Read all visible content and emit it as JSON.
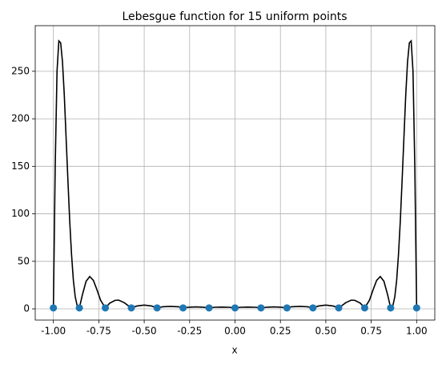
{
  "chart_data": {
    "type": "line",
    "title": "Lebesgue function for 15 uniform points",
    "x_label": "x",
    "xlim": [
      -1.1,
      1.1
    ],
    "ylim": [
      -11.8,
      298
    ],
    "grid": true,
    "xticks": [
      {
        "value": -1,
        "label": "-1.00"
      },
      {
        "value": -0.75,
        "label": "-0.75"
      },
      {
        "value": -0.5,
        "label": "-0.50"
      },
      {
        "value": -0.25,
        "label": "-0.25"
      },
      {
        "value": 0,
        "label": "0.00"
      },
      {
        "value": 0.25,
        "label": "0.25"
      },
      {
        "value": 0.5,
        "label": "0.50"
      },
      {
        "value": 0.75,
        "label": "0.75"
      },
      {
        "value": 1,
        "label": "1.00"
      }
    ],
    "yticks": [
      0,
      50,
      100,
      150,
      200,
      250
    ],
    "series": [
      {
        "type": "line",
        "color": "#000000",
        "x": [
          -1,
          -0.99,
          -0.98,
          -0.97,
          -0.96,
          -0.95,
          -0.94,
          -0.93,
          -0.92,
          -0.91,
          -0.9,
          -0.89,
          -0.88,
          -0.87,
          -0.857,
          -0.84,
          -0.82,
          -0.8,
          -0.78,
          -0.76,
          -0.74,
          -0.714,
          -0.69,
          -0.66,
          -0.64,
          -0.61,
          -0.571,
          -0.54,
          -0.5,
          -0.46,
          -0.429,
          -0.4,
          -0.357,
          -0.31,
          -0.286,
          -0.25,
          -0.214,
          -0.18,
          -0.143,
          -0.11,
          -0.071,
          -0.035,
          0,
          0.035,
          0.071,
          0.11,
          0.143,
          0.18,
          0.214,
          0.25,
          0.286,
          0.31,
          0.357,
          0.4,
          0.429,
          0.46,
          0.5,
          0.54,
          0.571,
          0.61,
          0.64,
          0.66,
          0.69,
          0.714,
          0.74,
          0.76,
          0.78,
          0.8,
          0.82,
          0.84,
          0.857,
          0.87,
          0.88,
          0.89,
          0.9,
          0.91,
          0.92,
          0.93,
          0.94,
          0.95,
          0.96,
          0.97,
          0.98,
          0.99,
          1
        ],
        "values": [
          1,
          150,
          250,
          282,
          280,
          260,
          225,
          180,
          135,
          92,
          57,
          30,
          13,
          4,
          1,
          15,
          29,
          34,
          30,
          20,
          9,
          1,
          6,
          9,
          9.2,
          6.5,
          1,
          3,
          4,
          3,
          1,
          2.2,
          2.6,
          2.2,
          1,
          1.8,
          2.1,
          1.8,
          1,
          1.7,
          1.9,
          1.7,
          1,
          1.7,
          1.9,
          1.7,
          1,
          1.8,
          2.1,
          1.8,
          1,
          2.2,
          2.6,
          2.2,
          1,
          3,
          4,
          3,
          1,
          6.5,
          9.2,
          9,
          6,
          1,
          9,
          20,
          30,
          34,
          29,
          15,
          1,
          4,
          13,
          30,
          57,
          92,
          135,
          180,
          225,
          260,
          280,
          282,
          250,
          150,
          1
        ]
      },
      {
        "type": "scatter",
        "color": "#1f77b4",
        "x": [
          -1,
          -0.857,
          -0.714,
          -0.571,
          -0.429,
          -0.286,
          -0.143,
          0,
          0.143,
          0.286,
          0.429,
          0.571,
          0.714,
          0.857,
          1
        ],
        "values": [
          1,
          1,
          1,
          1,
          1,
          1,
          1,
          1,
          1,
          1,
          1,
          1,
          1,
          1,
          1
        ]
      }
    ]
  }
}
